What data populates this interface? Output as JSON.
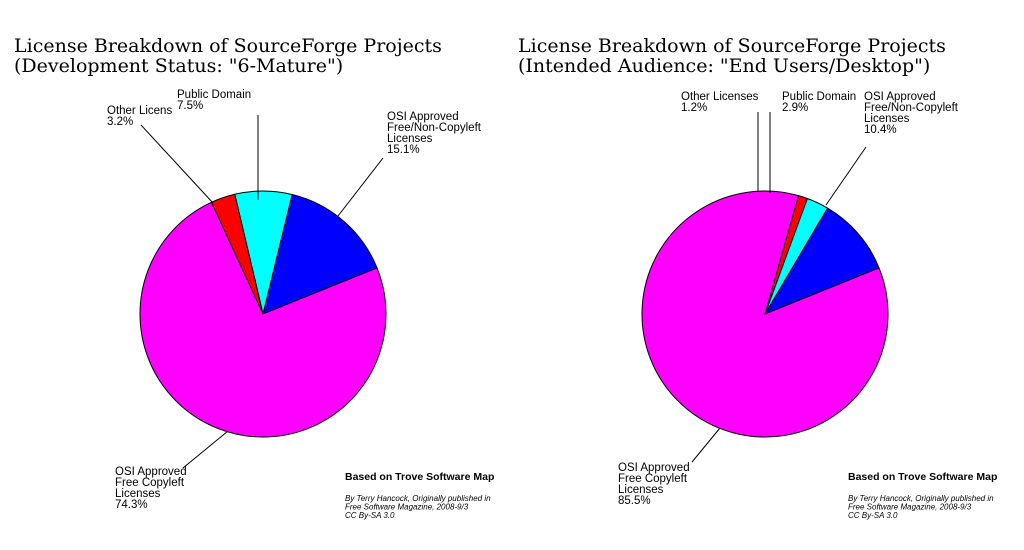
{
  "chart_data": [
    {
      "type": "pie",
      "title": "License Breakdown of SourceForge Projects",
      "subtitle": "(Development Status: \"6-Mature\")",
      "slices": [
        {
          "name": "OSI Approved Free/Non-Copyleft Licenses",
          "value": 15.1,
          "color": "#0000ff",
          "label_lines": [
            "OSI Approved",
            "Free/Non-Copyleft",
            "Licenses",
            "15.1%"
          ]
        },
        {
          "name": "Public Domain",
          "value": 7.5,
          "color": "#00ffff",
          "label_lines": [
            "Public Domain",
            "7.5%"
          ]
        },
        {
          "name": "Other Licens",
          "value": 3.2,
          "color": "#ff0000",
          "label_lines": [
            "Other Licens",
            "3.2%"
          ]
        },
        {
          "name": "OSI Approved Free Copyleft Licenses",
          "value": 74.3,
          "color": "#ff00ff",
          "label_lines": [
            "OSI Approved",
            "Free Copyleft",
            "Licenses",
            "74.3%"
          ]
        }
      ],
      "credit_heading": "Based on Trove Software Map",
      "credit_lines": [
        "By Terry Hancock, Originally published in",
        "Free Software Magazine, 2008-9/3",
        "CC By-SA 3.0"
      ]
    },
    {
      "type": "pie",
      "title": "License Breakdown of SourceForge Projects",
      "subtitle": "(Intended Audience: \"End Users/Desktop\")",
      "slices": [
        {
          "name": "OSI Approved Free/Non-Copyleft Licenses",
          "value": 10.4,
          "color": "#0000ff",
          "label_lines": [
            "OSI Approved",
            "Free/Non-Copyleft",
            "Licenses",
            "10.4%"
          ]
        },
        {
          "name": "Public Domain",
          "value": 2.9,
          "color": "#00ffff",
          "label_lines": [
            "Public Domain",
            "2.9%"
          ]
        },
        {
          "name": "Other Licenses",
          "value": 1.2,
          "color": "#ff0000",
          "label_lines": [
            "Other Licenses",
            "1.2%"
          ]
        },
        {
          "name": "OSI Approved Free Copyleft Licenses",
          "value": 85.5,
          "color": "#ff00ff",
          "label_lines": [
            "OSI Approved",
            "Free Copyleft",
            "Licenses",
            "85.5%"
          ]
        }
      ],
      "credit_heading": "Based on Trove Software Map",
      "credit_lines": [
        "By Terry Hancock, Originally published in",
        "Free Software Magazine, 2008-9/3",
        "CC By-SA 3.0"
      ]
    }
  ]
}
